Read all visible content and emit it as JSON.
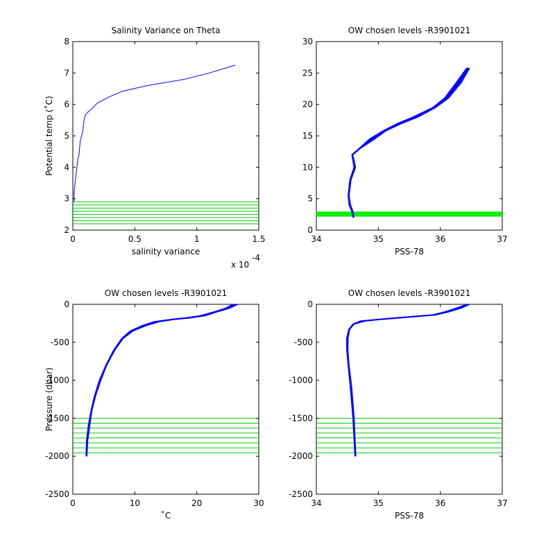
{
  "figure": {
    "background": "#ffffff"
  },
  "chart_data": [
    {
      "type": "line",
      "title": "Salinity Variance on Theta",
      "xlabel": "salinity variance",
      "ylabel": "Potential temp (˚C)",
      "x_scale_note": "x 10",
      "x_scale_exponent": "-4",
      "xlim": [
        0,
        1.5
      ],
      "ylim": [
        2,
        8
      ],
      "xticks": [
        "0",
        "0.5",
        "1",
        "1.5"
      ],
      "yticks": [
        "2",
        "3",
        "4",
        "5",
        "6",
        "7",
        "8"
      ],
      "series_color": "#0000ff",
      "series": [
        {
          "x": [
            0.01,
            0.01,
            0.02,
            0.03,
            0.04,
            0.05,
            0.06,
            0.07,
            0.08,
            0.09,
            0.1,
            0.12,
            0.15,
            0.2,
            0.3,
            0.4,
            0.6,
            0.9,
            1.1,
            1.31
          ],
          "y": [
            2.9,
            3.2,
            3.6,
            3.9,
            4.25,
            4.4,
            4.85,
            5.0,
            5.15,
            5.5,
            5.65,
            5.75,
            5.85,
            6.05,
            6.25,
            6.42,
            6.6,
            6.8,
            7.0,
            7.25
          ]
        }
      ],
      "chosen_levels": {
        "color": "#00cc00",
        "axis": "y",
        "values": [
          2.2,
          2.3,
          2.4,
          2.5,
          2.6,
          2.7,
          2.8,
          2.9
        ]
      }
    },
    {
      "type": "line",
      "title": "OW chosen levels -R3901021",
      "xlabel": "PSS-78",
      "ylabel": "",
      "xlim": [
        34,
        37
      ],
      "ylim": [
        0,
        30
      ],
      "xticks": [
        "34",
        "35",
        "36",
        "37"
      ],
      "yticks": [
        "0",
        "5",
        "10",
        "15",
        "20",
        "25",
        "30"
      ],
      "series_color": "#0000ff",
      "series": [
        {
          "x": [
            34.6,
            34.58,
            34.54,
            34.52,
            34.55,
            34.62,
            34.58,
            34.7,
            34.9,
            35.1,
            35.35,
            35.6,
            35.9,
            36.1,
            36.3,
            36.45
          ],
          "y": [
            2.0,
            3.0,
            4.0,
            5.5,
            8.0,
            10.0,
            12.0,
            13.0,
            14.5,
            15.8,
            17.0,
            18.0,
            19.5,
            21.0,
            23.5,
            25.8
          ]
        }
      ],
      "chosen_levels": {
        "color": "#00ee00",
        "axis": "y",
        "values": [
          2.2,
          2.3,
          2.4,
          2.5,
          2.6,
          2.7,
          2.8,
          2.9
        ]
      }
    },
    {
      "type": "line",
      "title": "OW chosen levels -R3901021",
      "xlabel": "˚C",
      "ylabel": "Pressure (dbar)",
      "xlim": [
        0,
        30
      ],
      "ylim": [
        -2500,
        0
      ],
      "xticks": [
        "0",
        "10",
        "20",
        "30"
      ],
      "yticks": [
        "-2500",
        "-2000",
        "-1500",
        "-1000",
        "-500",
        "0"
      ],
      "series_color": "#0000ff",
      "series": [
        {
          "x": [
            2.2,
            2.3,
            2.6,
            3.0,
            3.6,
            4.4,
            5.4,
            6.7,
            8.0,
            9.5,
            11.5,
            13.5,
            16.0,
            18.5,
            21.0,
            23.0,
            25.0,
            26.2
          ],
          "y": [
            -2000,
            -1800,
            -1600,
            -1400,
            -1200,
            -1000,
            -800,
            -600,
            -450,
            -350,
            -280,
            -230,
            -200,
            -180,
            -150,
            -100,
            -50,
            0
          ]
        }
      ],
      "chosen_levels": {
        "color": "#00cc00",
        "axis": "y",
        "values": [
          -1500,
          -1565,
          -1630,
          -1695,
          -1760,
          -1825,
          -1890,
          -1955
        ]
      }
    },
    {
      "type": "line",
      "title": "OW chosen levels -R3901021",
      "xlabel": "PSS-78",
      "ylabel": "",
      "xlim": [
        34,
        37
      ],
      "ylim": [
        -2500,
        0
      ],
      "xticks": [
        "34",
        "35",
        "36",
        "37"
      ],
      "yticks": [
        "-2500",
        "-2000",
        "-1500",
        "-1000",
        "-500",
        "0"
      ],
      "series_color": "#0000ff",
      "series": [
        {
          "x": [
            34.63,
            34.6,
            34.56,
            34.52,
            34.5,
            34.5,
            34.53,
            34.6,
            34.75,
            35.0,
            35.3,
            35.6,
            35.9,
            36.1,
            36.3,
            36.45
          ],
          "y": [
            -2000,
            -1500,
            -1100,
            -800,
            -600,
            -450,
            -330,
            -260,
            -220,
            -200,
            -180,
            -160,
            -140,
            -100,
            -50,
            0
          ]
        }
      ],
      "chosen_levels": {
        "color": "#00cc00",
        "axis": "y",
        "values": [
          -1500,
          -1565,
          -1630,
          -1695,
          -1760,
          -1825,
          -1890,
          -1955
        ]
      }
    }
  ]
}
